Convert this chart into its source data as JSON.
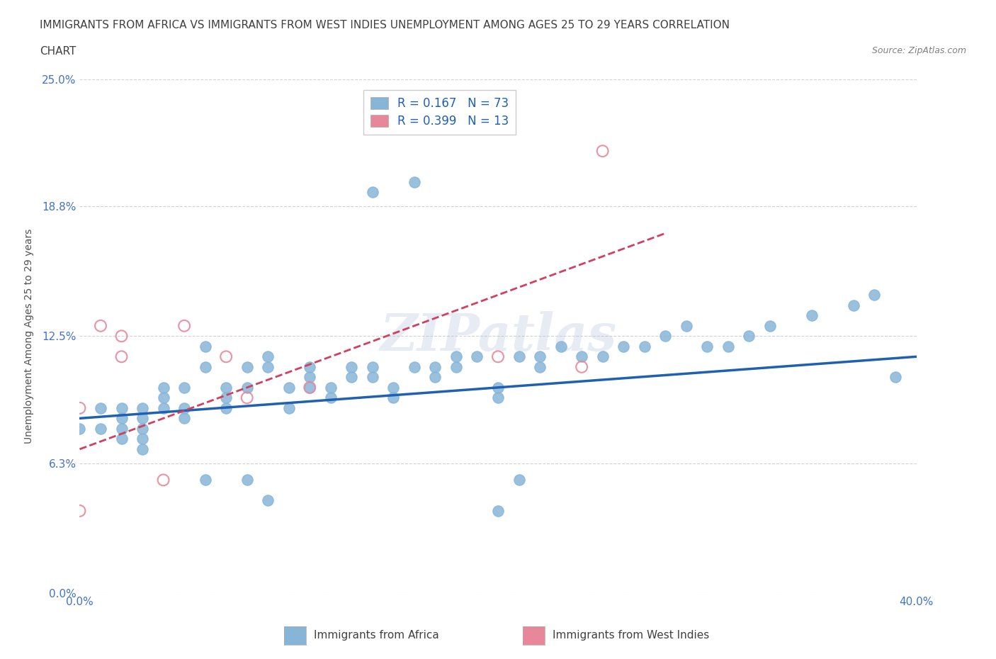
{
  "title_line1": "IMMIGRANTS FROM AFRICA VS IMMIGRANTS FROM WEST INDIES UNEMPLOYMENT AMONG AGES 25 TO 29 YEARS CORRELATION",
  "title_line2": "CHART",
  "source_text": "Source: ZipAtlas.com",
  "ylabel": "Unemployment Among Ages 25 to 29 years",
  "xlim": [
    0.0,
    0.4
  ],
  "ylim": [
    0.0,
    0.25
  ],
  "yticks": [
    0.0,
    0.063,
    0.125,
    0.188,
    0.25
  ],
  "ytick_labels": [
    "0.0%",
    "6.3%",
    "12.5%",
    "18.8%",
    "25.0%"
  ],
  "xtick_positions": [
    0.0,
    0.1,
    0.2,
    0.3,
    0.4
  ],
  "xtick_labels": [
    "0.0%",
    "",
    "",
    "",
    "40.0%"
  ],
  "legend_entries": [
    {
      "label": "Immigrants from Africa",
      "color": "#a8c4e0",
      "R": "0.167",
      "N": "73"
    },
    {
      "label": "Immigrants from West Indies",
      "color": "#f0a0b0",
      "R": "0.399",
      "N": "13"
    }
  ],
  "africa_scatter_x": [
    0.0,
    0.01,
    0.01,
    0.02,
    0.02,
    0.02,
    0.02,
    0.03,
    0.03,
    0.03,
    0.03,
    0.03,
    0.04,
    0.04,
    0.04,
    0.05,
    0.05,
    0.05,
    0.06,
    0.06,
    0.07,
    0.07,
    0.07,
    0.08,
    0.08,
    0.09,
    0.09,
    0.1,
    0.1,
    0.11,
    0.11,
    0.11,
    0.12,
    0.12,
    0.13,
    0.13,
    0.14,
    0.14,
    0.15,
    0.15,
    0.16,
    0.17,
    0.17,
    0.18,
    0.18,
    0.19,
    0.2,
    0.2,
    0.21,
    0.22,
    0.22,
    0.23,
    0.24,
    0.25,
    0.26,
    0.27,
    0.28,
    0.29,
    0.3,
    0.31,
    0.32,
    0.33,
    0.35,
    0.37,
    0.38,
    0.39,
    0.14,
    0.16,
    0.2,
    0.21,
    0.06,
    0.08,
    0.09
  ],
  "africa_scatter_y": [
    0.08,
    0.08,
    0.09,
    0.09,
    0.085,
    0.08,
    0.075,
    0.09,
    0.085,
    0.08,
    0.075,
    0.07,
    0.1,
    0.095,
    0.09,
    0.1,
    0.09,
    0.085,
    0.12,
    0.11,
    0.1,
    0.095,
    0.09,
    0.11,
    0.1,
    0.115,
    0.11,
    0.1,
    0.09,
    0.11,
    0.105,
    0.1,
    0.1,
    0.095,
    0.11,
    0.105,
    0.11,
    0.105,
    0.1,
    0.095,
    0.11,
    0.11,
    0.105,
    0.115,
    0.11,
    0.115,
    0.1,
    0.095,
    0.115,
    0.115,
    0.11,
    0.12,
    0.115,
    0.115,
    0.12,
    0.12,
    0.125,
    0.13,
    0.12,
    0.12,
    0.125,
    0.13,
    0.135,
    0.14,
    0.145,
    0.105,
    0.195,
    0.2,
    0.04,
    0.055,
    0.055,
    0.055,
    0.045
  ],
  "westindies_scatter_x": [
    0.0,
    0.0,
    0.01,
    0.02,
    0.02,
    0.04,
    0.05,
    0.07,
    0.08,
    0.2,
    0.24,
    0.25,
    0.11
  ],
  "westindies_scatter_y": [
    0.04,
    0.09,
    0.13,
    0.125,
    0.115,
    0.055,
    0.13,
    0.115,
    0.095,
    0.115,
    0.11,
    0.215,
    0.1
  ],
  "africa_trend_x": [
    0.0,
    0.4
  ],
  "africa_trend_y_start": 0.085,
  "africa_trend_y_end": 0.115,
  "westindies_trend_x": [
    0.0,
    0.28
  ],
  "westindies_trend_y_start": 0.07,
  "westindies_trend_y_end": 0.175,
  "africa_color": "#87b5d8",
  "westindies_color": "#e8879a",
  "africa_trend_color": "#2060b0",
  "westindies_trend_color": "#d04060",
  "watermark_text": "ZIPatlas",
  "background_color": "#ffffff",
  "grid_color": "#c0c0c0",
  "title_color": "#404040",
  "axis_label_color": "#505050",
  "tick_label_color": "#4472c4"
}
